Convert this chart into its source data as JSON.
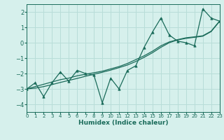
{
  "title": "",
  "xlabel": "Humidex (Indice chaleur)",
  "ylabel": "",
  "bg_color": "#d6f0ec",
  "grid_color": "#b8ddd8",
  "line_color": "#1a6b5a",
  "x_data": [
    0,
    1,
    2,
    3,
    4,
    5,
    6,
    7,
    8,
    9,
    10,
    11,
    12,
    13,
    14,
    15,
    16,
    17,
    18,
    19,
    20,
    21,
    22,
    23
  ],
  "y_main": [
    -3.0,
    -2.6,
    -3.5,
    -2.6,
    -1.9,
    -2.5,
    -1.8,
    -2.0,
    -2.1,
    -3.9,
    -2.3,
    -3.0,
    -1.8,
    -1.5,
    -0.3,
    0.7,
    1.6,
    0.5,
    0.1,
    0.0,
    -0.2,
    2.2,
    1.6,
    1.4
  ],
  "y_smooth1": [
    -3.0,
    -2.85,
    -2.7,
    -2.55,
    -2.4,
    -2.3,
    -2.15,
    -2.05,
    -1.95,
    -1.85,
    -1.7,
    -1.55,
    -1.35,
    -1.1,
    -0.85,
    -0.55,
    -0.2,
    0.05,
    0.2,
    0.32,
    0.38,
    0.45,
    0.75,
    1.4
  ],
  "y_smooth2": [
    -3.0,
    -2.95,
    -2.85,
    -2.72,
    -2.58,
    -2.45,
    -2.32,
    -2.18,
    -2.05,
    -1.92,
    -1.78,
    -1.62,
    -1.45,
    -1.22,
    -0.95,
    -0.65,
    -0.3,
    0.0,
    0.18,
    0.28,
    0.35,
    0.42,
    0.72,
    1.38
  ],
  "xlim": [
    0,
    23
  ],
  "ylim": [
    -4.5,
    2.5
  ],
  "yticks": [
    -4,
    -3,
    -2,
    -1,
    0,
    1,
    2
  ],
  "xtick_labels": [
    "0",
    "1",
    "2",
    "3",
    "4",
    "5",
    "6",
    "7",
    "8",
    "9",
    "10",
    "11",
    "12",
    "13",
    "14",
    "15",
    "16",
    "17",
    "18",
    "19",
    "20",
    "21",
    "22",
    "23"
  ]
}
